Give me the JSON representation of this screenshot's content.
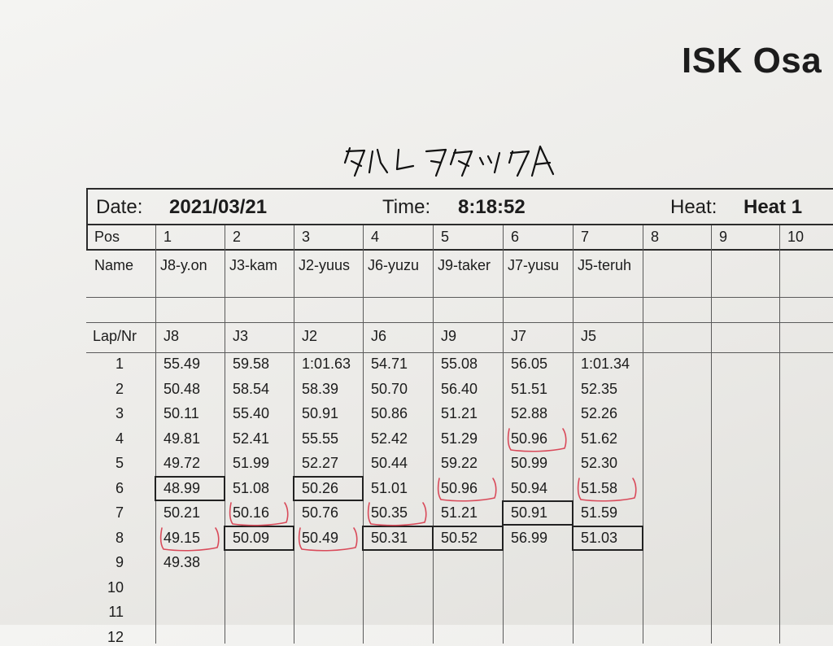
{
  "header": {
    "org_title": "ISK Osa",
    "handwritten_title": "タイムアタックA"
  },
  "meta": {
    "date_label": "Date:",
    "date_value": "2021/03/21",
    "time_label": "Time:",
    "time_value": "8:18:52",
    "heat_label": "Heat:",
    "heat_value": "Heat 1"
  },
  "table": {
    "pos_label": "Pos",
    "name_label": "Name",
    "lapnr_label": "Lap/Nr",
    "positions": [
      "1",
      "2",
      "3",
      "4",
      "5",
      "6",
      "7",
      "8",
      "9",
      "10"
    ],
    "names": [
      "J8-y.on",
      "J3-kam",
      "J2-yuus",
      "J6-yuzu",
      "J9-taker",
      "J7-yusu",
      "J5-teruh",
      "",
      "",
      ""
    ],
    "numbers": [
      "J8",
      "J3",
      "J2",
      "J6",
      "J9",
      "J7",
      "J5",
      "",
      "",
      ""
    ],
    "lap_numbers": [
      "1",
      "2",
      "3",
      "4",
      "5",
      "6",
      "7",
      "8",
      "9",
      "10",
      "11",
      "12"
    ],
    "lap_times": [
      [
        "55.49",
        "59.58",
        "1:01.63",
        "54.71",
        "55.08",
        "56.05",
        "1:01.34"
      ],
      [
        "50.48",
        "58.54",
        "58.39",
        "50.70",
        "56.40",
        "51.51",
        "52.35"
      ],
      [
        "50.11",
        "55.40",
        "50.91",
        "50.86",
        "51.21",
        "52.88",
        "52.26"
      ],
      [
        "49.81",
        "52.41",
        "55.55",
        "52.42",
        "51.29",
        "50.96",
        "51.62"
      ],
      [
        "49.72",
        "51.99",
        "52.27",
        "50.44",
        "59.22",
        "50.99",
        "52.30"
      ],
      [
        "48.99",
        "51.08",
        "50.26",
        "51.01",
        "50.96",
        "50.94",
        "51.58"
      ],
      [
        "50.21",
        "50.16",
        "50.76",
        "50.35",
        "51.21",
        "50.91",
        "51.59"
      ],
      [
        "49.15",
        "50.09",
        "50.49",
        "50.31",
        "50.52",
        "56.99",
        "51.03"
      ],
      [
        "49.38",
        "",
        "",
        "",
        "",
        "",
        "",
        ""
      ],
      [
        "",
        "",
        "",
        "",
        "",
        "",
        ""
      ],
      [
        "",
        "",
        "",
        "",
        "",
        "",
        ""
      ],
      [
        "",
        "",
        "",
        "",
        "",
        "",
        ""
      ]
    ]
  },
  "annotations": {
    "best_lap_boxed": [
      [
        6,
        1
      ],
      [
        6,
        3
      ],
      [
        7,
        6
      ],
      [
        8,
        2
      ],
      [
        8,
        4
      ],
      [
        8,
        5
      ],
      [
        8,
        7
      ]
    ],
    "red_circled": [
      [
        4,
        6
      ],
      [
        6,
        5
      ],
      [
        6,
        7
      ],
      [
        7,
        2
      ],
      [
        7,
        4
      ],
      [
        8,
        1
      ],
      [
        8,
        3
      ]
    ],
    "ink_color": "#d94a5a",
    "box_color": "#222222"
  }
}
